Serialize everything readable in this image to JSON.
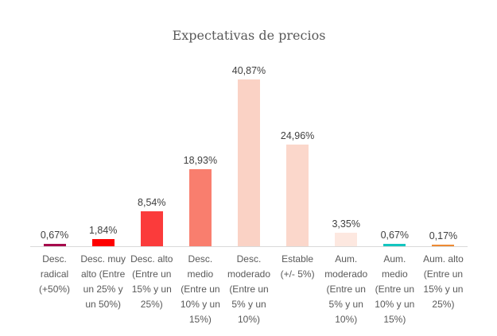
{
  "chart_data": {
    "type": "bar",
    "title": "Expectativas de precios",
    "categories": [
      "Desc. radical (+50%)",
      "Desc. muy alto (Entre un 25% y un 50%)",
      "Desc. alto (Entre un 15% y un 25%)",
      "Desc. medio (Entre un 10% y un 15%)",
      "Desc. moderado (Entre un 5% y un 10%)",
      "Estable (+/- 5%)",
      "Aum. moderado (Entre un 5% y un 10%)",
      "Aum. medio (Entre un 10% y un 15%)",
      "Aum. alto (Entre un 15% y un 25%)"
    ],
    "category_lines": [
      [
        "Desc.",
        "radical",
        "(+50%)"
      ],
      [
        "Desc. muy",
        "alto (Entre",
        "un 25% y",
        "un 50%)"
      ],
      [
        "Desc. alto",
        "(Entre un",
        "15% y un",
        "25%)"
      ],
      [
        "Desc.",
        "medio",
        "(Entre un",
        "10% y un",
        "15%)"
      ],
      [
        "Desc.",
        "moderado",
        "(Entre un",
        "5% y un",
        "10%)"
      ],
      [
        "Estable",
        "(+/- 5%)"
      ],
      [
        "Aum.",
        "moderado",
        "(Entre un",
        "5% y un",
        "10%)"
      ],
      [
        "Aum.",
        "medio",
        "(Entre un",
        "10% y un",
        "15%)"
      ],
      [
        "Aum. alto",
        "(Entre un",
        "15% y un",
        "25%)"
      ]
    ],
    "values": [
      0.67,
      1.84,
      8.54,
      18.93,
      40.87,
      24.96,
      3.35,
      0.67,
      0.17
    ],
    "value_labels": [
      "0,67%",
      "1,84%",
      "8,54%",
      "18,93%",
      "40,87%",
      "24,96%",
      "3,35%",
      "0,67%",
      "0,17%"
    ],
    "bar_colors": [
      "#a60a4b",
      "#fe0000",
      "#fb3b3b",
      "#f97e6e",
      "#fad2c5",
      "#fbd7cb",
      "#fde8e0",
      "#13c5bf",
      "#ed8a33"
    ],
    "xlabel": "",
    "ylabel": "",
    "ylim": [
      0,
      43
    ],
    "grid": false,
    "legend": false,
    "axis_line_color": "#d9d9d9",
    "value_label_color": "#3f3f3f",
    "category_label_color": "#595959"
  }
}
